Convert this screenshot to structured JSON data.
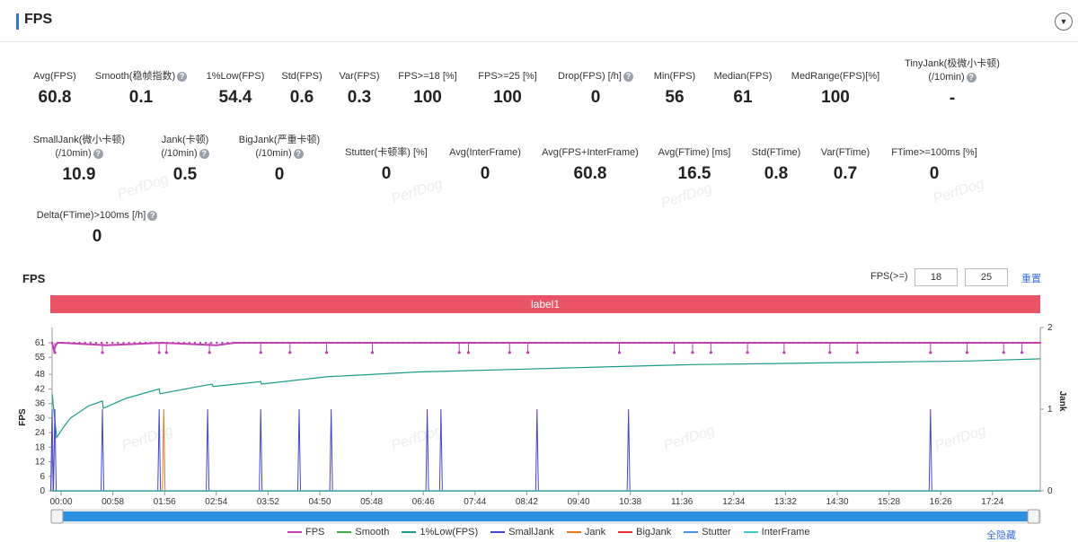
{
  "header": {
    "title": "FPS",
    "accent_color": "#3a6fd8",
    "collapse_icon": "chevron-down-icon"
  },
  "metrics_row1": [
    {
      "label": "Avg(FPS)",
      "value": "60.8",
      "help": false
    },
    {
      "label": "Smooth(稳帧指数)",
      "value": "0.1",
      "help": true
    },
    {
      "label": "1%Low(FPS)",
      "value": "54.4",
      "help": false
    },
    {
      "label": "Std(FPS)",
      "value": "0.6",
      "help": false
    },
    {
      "label": "Var(FPS)",
      "value": "0.3",
      "help": false
    },
    {
      "label": "FPS>=18 [%]",
      "value": "100",
      "help": false
    },
    {
      "label": "FPS>=25 [%]",
      "value": "100",
      "help": false
    },
    {
      "label": "Drop(FPS) [/h]",
      "value": "0",
      "help": true
    },
    {
      "label": "Min(FPS)",
      "value": "56",
      "help": false
    },
    {
      "label": "Median(FPS)",
      "value": "61",
      "help": false
    },
    {
      "label": "MedRange(FPS)[%]",
      "value": "100",
      "help": false
    },
    {
      "label": "TinyJank(极微小卡顿)",
      "label2": "(/10min)",
      "value": "-",
      "help": true
    }
  ],
  "metrics_row2": [
    {
      "label": "SmallJank(微小卡顿)",
      "label2": "(/10min)",
      "value": "10.9",
      "help": true
    },
    {
      "label": "Jank(卡顿)",
      "label2": "(/10min)",
      "value": "0.5",
      "help": true
    },
    {
      "label": "BigJank(严重卡顿)",
      "label2": "(/10min)",
      "value": "0",
      "help": true
    },
    {
      "label": "Stutter(卡顿率) [%]",
      "value": "0",
      "help": false
    },
    {
      "label": "Avg(InterFrame)",
      "value": "0",
      "help": false
    },
    {
      "label": "Avg(FPS+InterFrame)",
      "value": "60.8",
      "help": false
    },
    {
      "label": "Avg(FTime) [ms]",
      "value": "16.5",
      "help": false
    },
    {
      "label": "Std(FTime)",
      "value": "0.8",
      "help": false
    },
    {
      "label": "Var(FTime)",
      "value": "0.7",
      "help": false
    },
    {
      "label": "FTime>=100ms [%]",
      "value": "0",
      "help": false
    }
  ],
  "metrics_row3": [
    {
      "label": "Delta(FTime)>100ms [/h]",
      "value": "0",
      "help": true
    }
  ],
  "watermark": "PerfDog",
  "controls": {
    "chart_title": "FPS",
    "threshold_label": "FPS(>=)",
    "threshold_low": "18",
    "threshold_high": "25",
    "reset_label": "重置",
    "label_bar_text": "label1",
    "label_bar_color": "#e95566",
    "hide_all_label": "全隐藏"
  },
  "chart_data": {
    "type": "line",
    "x_tick_labels": [
      "00:00",
      "00:58",
      "01:56",
      "02:54",
      "03:52",
      "04:50",
      "05:48",
      "06:46",
      "07:44",
      "08:42",
      "09:40",
      "10:38",
      "11:36",
      "12:34",
      "13:32",
      "14:30",
      "15:28",
      "16:26",
      "17:24"
    ],
    "x_range_seconds": [
      0,
      1080
    ],
    "y_left": {
      "label": "FPS",
      "ticks": [
        0,
        6,
        12,
        18,
        24,
        30,
        36,
        42,
        48,
        55,
        61
      ],
      "range": [
        0,
        61
      ]
    },
    "y_right": {
      "label": "Jank",
      "ticks": [
        0,
        1,
        2
      ],
      "range": [
        0,
        2
      ]
    },
    "grid": false,
    "legend_position": "bottom",
    "series": [
      {
        "name": "FPS",
        "color": "#c040b0",
        "axis": "left",
        "x": [
          0,
          2,
          4,
          6,
          8,
          10,
          60,
          120,
          180,
          200,
          240,
          300,
          360,
          480,
          600,
          720,
          840,
          960,
          1080
        ],
        "y": [
          61,
          58,
          60,
          61,
          61,
          61,
          60,
          61,
          60,
          61,
          61,
          61,
          61,
          61,
          61,
          61,
          61,
          61,
          61
        ],
        "dips_x": [
          3,
          55,
          117,
          125,
          172,
          228,
          260,
          300,
          350,
          445,
          455,
          500,
          520,
          620,
          680,
          700,
          720,
          760,
          800,
          850,
          880,
          960,
          1000,
          1040,
          1060
        ]
      },
      {
        "name": "Smooth",
        "color": "#44aa44",
        "axis": "left",
        "x": [
          0,
          1080
        ],
        "y": [
          0,
          0
        ]
      },
      {
        "name": "1%Low(FPS)",
        "color": "#1a9a8a",
        "axis": "left",
        "x": [
          0,
          5,
          12,
          20,
          40,
          55,
          56,
          80,
          117,
          118,
          160,
          175,
          176,
          228,
          229,
          300,
          400,
          500,
          600,
          700,
          800,
          900,
          1000,
          1080
        ],
        "y": [
          40,
          22,
          26,
          30,
          35,
          37,
          34,
          38,
          42,
          40,
          43,
          44,
          43,
          45,
          44,
          47,
          49,
          50,
          51,
          52,
          52.5,
          53,
          53.5,
          54.4
        ]
      },
      {
        "name": "SmallJank",
        "color": "#4444cc",
        "axis": "right",
        "spikes_x": [
          0,
          3,
          55,
          117,
          170,
          228,
          270,
          305,
          410,
          425,
          530,
          630,
          960
        ],
        "spike_y": 1
      },
      {
        "name": "Jank",
        "color": "#ee7722",
        "axis": "right",
        "spikes_x": [
          122
        ],
        "spike_y": 1
      },
      {
        "name": "BigJank",
        "color": "#dd3333",
        "axis": "right",
        "x": [
          0,
          1080
        ],
        "y": [
          0,
          0
        ]
      },
      {
        "name": "Stutter",
        "color": "#4a90e8",
        "axis": "right",
        "x": [
          0,
          1080
        ],
        "y": [
          0,
          0
        ]
      },
      {
        "name": "InterFrame",
        "color": "#40c8c0",
        "axis": "left",
        "x": [
          0,
          1080
        ],
        "y": [
          0,
          0
        ]
      }
    ]
  }
}
